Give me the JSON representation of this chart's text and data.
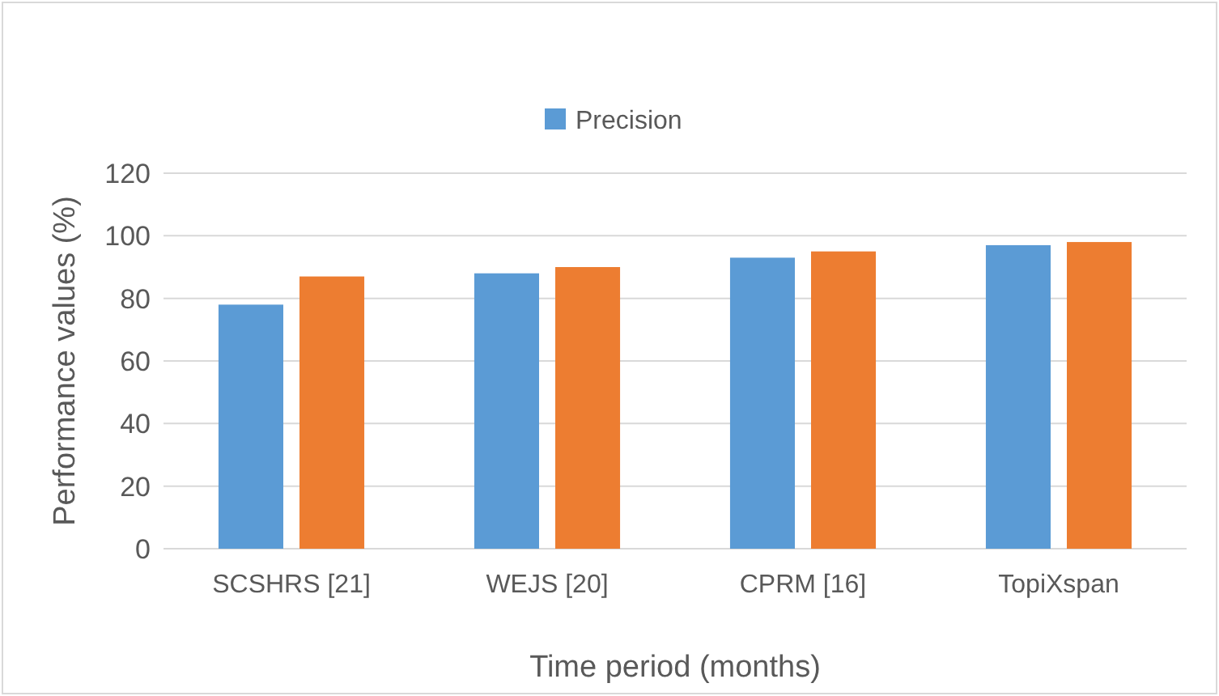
{
  "chart_data": {
    "type": "bar",
    "xlabel": "Time period (months)",
    "ylabel": "Performance values (%)",
    "categories": [
      "SCSHRS [21]",
      "WEJS [20]",
      "CPRM [16]",
      "TopiXspan"
    ],
    "series": [
      {
        "name": "Precision",
        "color": "#5b9bd5",
        "values": [
          78,
          88,
          93,
          97
        ]
      },
      {
        "color": "#ed7d31",
        "values": [
          87,
          90,
          95,
          98
        ]
      }
    ],
    "ylim": [
      0,
      120
    ],
    "yticks": [
      0,
      20,
      40,
      60,
      80,
      100,
      120
    ],
    "grid": "y",
    "legend": "top"
  }
}
